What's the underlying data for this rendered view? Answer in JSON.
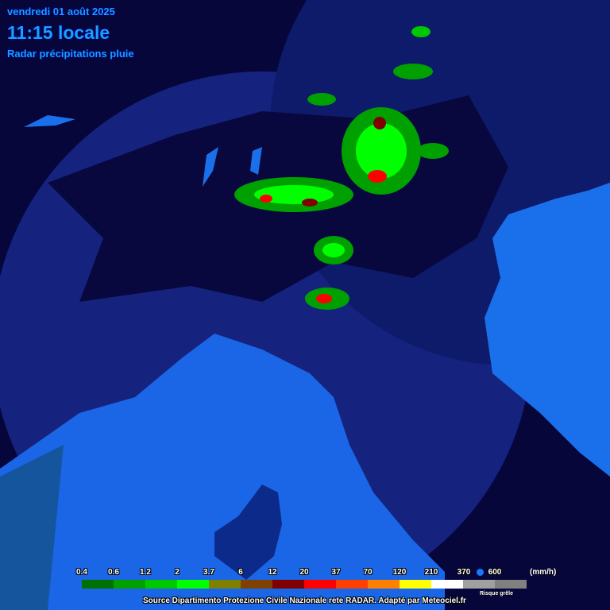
{
  "header": {
    "date": "vendredi 01 août 2025",
    "time": "11:15 locale",
    "subtitle": "Radar précipitations pluie"
  },
  "legend": {
    "labels": [
      "0.4",
      "0.6",
      "1.2",
      "2",
      "3.7",
      "6",
      "12",
      "20",
      "37",
      "70",
      "120",
      "210",
      "370",
      "600"
    ],
    "colors": [
      "#007000",
      "#00a000",
      "#00c800",
      "#00ff00",
      "#808000",
      "#804000",
      "#800000",
      "#ff0000",
      "#ff4000",
      "#ff8000",
      "#ffff00",
      "#ffffff",
      "#a0a0a0",
      "#808080"
    ],
    "unit": "(mm/h)",
    "hail_label": "Risque grêle",
    "hail_marker_color": "#1a78ff"
  },
  "source": "Source Dipartimento Protezione Civile Nazionale rete RADAR. Adapté par Meteociel.fr",
  "colors": {
    "land": "#06063a",
    "radar_coverage": "#15237e",
    "sea": "#1a66e6",
    "title": "#19a0ff"
  }
}
